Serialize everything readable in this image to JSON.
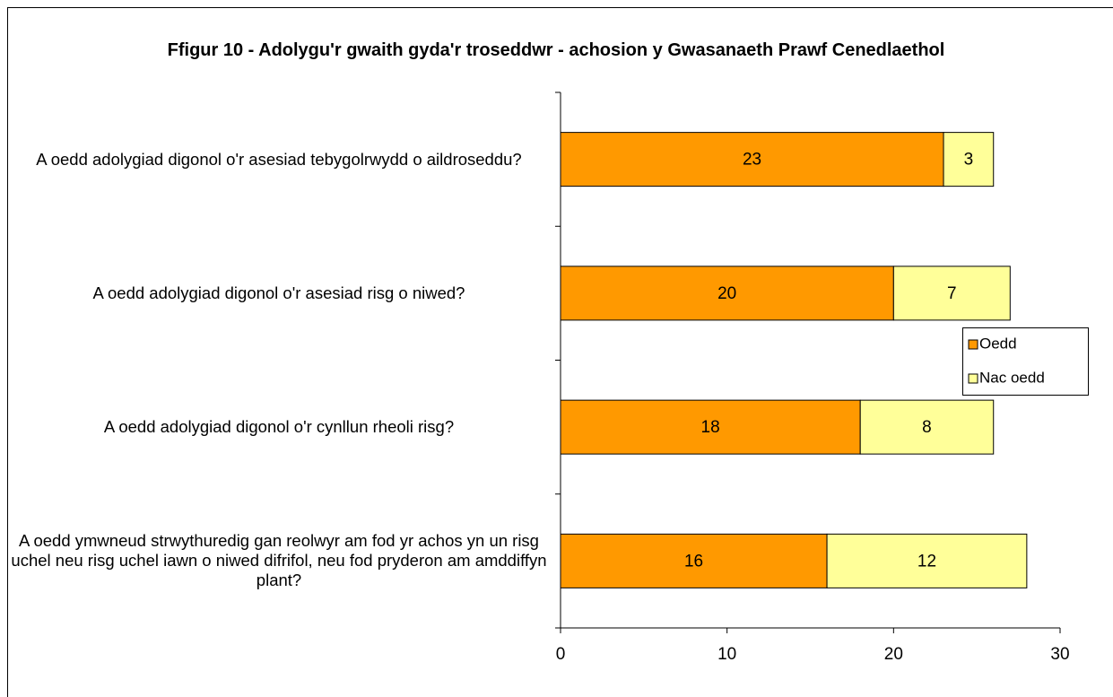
{
  "chart_data": {
    "type": "stacked-barh",
    "title": "Ffigur 10 - Adolygu'r gwaith gyda'r troseddwr - achosion y Gwasanaeth Prawf Cenedlaethol",
    "categories": [
      "A oedd adolygiad digonol o'r asesiad tebygolrwydd o aildroseddu?",
      "A oedd adolygiad digonol o'r asesiad risg o niwed?",
      "A oedd adolygiad digonol o'r cynllun rheoli risg?",
      "A oedd ymwneud strwythuredig gan reolwyr am fod yr achos yn un risg uchel neu risg uchel iawn o niwed difrifol, neu fod pryderon am amddiffyn plant?"
    ],
    "series": [
      {
        "name": "Oedd",
        "color": "#ff9900",
        "values": [
          23,
          20,
          18,
          16
        ]
      },
      {
        "name": "Nac oedd",
        "color": "#ffff99",
        "values": [
          3,
          7,
          8,
          12
        ]
      }
    ],
    "xlim": [
      0,
      30
    ],
    "xticks": [
      0,
      10,
      20,
      30
    ],
    "legend": "right"
  }
}
